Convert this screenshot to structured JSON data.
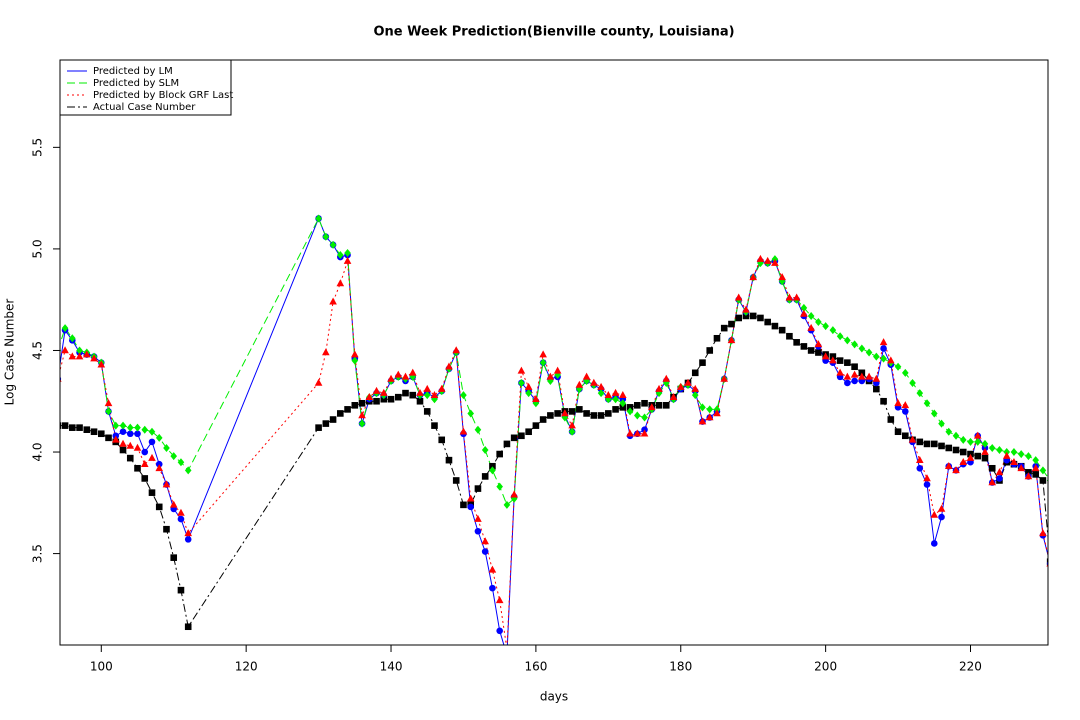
{
  "chart_data": {
    "type": "line",
    "title": "One Week Prediction(Bienville county, Louisiana)",
    "xlabel": "days",
    "ylabel": "Log Case Number",
    "x": [
      94,
      95,
      96,
      97,
      98,
      99,
      100,
      101,
      102,
      103,
      104,
      105,
      106,
      107,
      108,
      109,
      110,
      111,
      112,
      130,
      131,
      132,
      133,
      134,
      135,
      136,
      137,
      138,
      139,
      140,
      141,
      142,
      143,
      144,
      145,
      146,
      147,
      148,
      149,
      150,
      151,
      152,
      153,
      154,
      155,
      156,
      157,
      158,
      159,
      160,
      161,
      162,
      163,
      164,
      165,
      166,
      167,
      168,
      169,
      170,
      171,
      172,
      173,
      174,
      175,
      176,
      177,
      178,
      179,
      180,
      181,
      182,
      183,
      184,
      185,
      186,
      187,
      188,
      189,
      190,
      191,
      192,
      193,
      194,
      195,
      196,
      197,
      198,
      199,
      200,
      201,
      202,
      203,
      204,
      205,
      206,
      207,
      208,
      209,
      210,
      211,
      212,
      213,
      214,
      215,
      216,
      217,
      218,
      219,
      220,
      221,
      222,
      223,
      224,
      225,
      226,
      227,
      228,
      229,
      230,
      231
    ],
    "series": [
      {
        "name": "Predicted by LM",
        "color": "#0000ff",
        "linestyle": "solid",
        "marker": "circle",
        "values": [
          4.36,
          4.6,
          4.55,
          4.49,
          4.48,
          4.47,
          4.44,
          4.2,
          4.08,
          4.1,
          4.09,
          4.09,
          4.0,
          4.05,
          3.94,
          3.84,
          3.72,
          3.67,
          3.57,
          5.15,
          5.06,
          5.02,
          4.96,
          4.97,
          4.46,
          4.14,
          4.26,
          4.29,
          4.28,
          4.35,
          4.37,
          4.35,
          4.37,
          4.28,
          4.29,
          4.27,
          4.3,
          4.41,
          4.49,
          4.09,
          3.73,
          3.61,
          3.51,
          3.33,
          3.12,
          3.0,
          3.78,
          4.34,
          4.3,
          4.25,
          4.44,
          4.36,
          4.37,
          4.18,
          4.1,
          4.31,
          4.35,
          4.33,
          4.31,
          4.26,
          4.27,
          4.26,
          4.08,
          4.09,
          4.11,
          4.21,
          4.3,
          4.35,
          4.26,
          4.31,
          4.33,
          4.3,
          4.15,
          4.17,
          4.2,
          4.36,
          4.55,
          4.75,
          4.69,
          4.86,
          4.94,
          4.93,
          4.94,
          4.84,
          4.75,
          4.75,
          4.67,
          4.6,
          4.52,
          4.45,
          4.44,
          4.37,
          4.34,
          4.35,
          4.35,
          4.36,
          4.34,
          4.51,
          4.43,
          4.22,
          4.2,
          4.05,
          3.92,
          3.84,
          3.55,
          3.68,
          3.93,
          3.91,
          3.94,
          3.95,
          4.08,
          4.02,
          3.85,
          3.87,
          3.96,
          3.94,
          3.93,
          3.88,
          3.93,
          3.59,
          3.45
        ]
      },
      {
        "name": "Predicted by SLM",
        "color": "#00ee00",
        "linestyle": "dashed",
        "marker": "diamond",
        "values": [
          4.5,
          4.61,
          4.56,
          4.5,
          4.49,
          4.47,
          4.44,
          4.2,
          4.13,
          4.13,
          4.12,
          4.12,
          4.11,
          4.1,
          4.07,
          4.02,
          3.98,
          3.95,
          3.91,
          5.15,
          5.06,
          5.02,
          4.97,
          4.98,
          4.45,
          4.14,
          4.27,
          4.29,
          4.28,
          4.35,
          4.37,
          4.36,
          4.37,
          4.28,
          4.28,
          4.26,
          4.3,
          4.41,
          4.49,
          4.28,
          4.19,
          4.11,
          4.01,
          3.91,
          3.83,
          3.74,
          3.77,
          4.34,
          4.29,
          4.24,
          4.44,
          4.35,
          4.38,
          4.17,
          4.1,
          4.31,
          4.35,
          4.33,
          4.29,
          4.26,
          4.26,
          4.24,
          4.2,
          4.18,
          4.17,
          4.21,
          4.29,
          4.34,
          4.26,
          4.32,
          4.33,
          4.28,
          4.22,
          4.21,
          4.21,
          4.36,
          4.55,
          4.75,
          4.69,
          4.86,
          4.93,
          4.93,
          4.95,
          4.84,
          4.75,
          4.75,
          4.71,
          4.67,
          4.64,
          4.62,
          4.6,
          4.57,
          4.55,
          4.53,
          4.51,
          4.49,
          4.47,
          4.46,
          4.44,
          4.42,
          4.39,
          4.34,
          4.29,
          4.24,
          4.19,
          4.14,
          4.1,
          4.08,
          4.06,
          4.05,
          4.05,
          4.04,
          4.02,
          4.01,
          4.0,
          4.0,
          3.99,
          3.98,
          3.96,
          3.91,
          3.86
        ]
      },
      {
        "name": "Predicted by Block GRF Last",
        "color": "#ff0000",
        "linestyle": "dotted",
        "marker": "triangle",
        "values": [
          4.36,
          4.5,
          4.47,
          4.47,
          4.48,
          4.46,
          4.43,
          4.24,
          4.06,
          4.04,
          4.03,
          4.02,
          3.94,
          3.97,
          3.92,
          3.84,
          3.74,
          3.7,
          3.6,
          4.34,
          4.49,
          4.74,
          4.83,
          4.94,
          4.48,
          4.18,
          4.27,
          4.3,
          4.29,
          4.36,
          4.38,
          4.37,
          4.39,
          4.29,
          4.31,
          4.28,
          4.31,
          4.42,
          4.5,
          4.1,
          3.77,
          3.67,
          3.56,
          3.42,
          3.27,
          3.03,
          3.79,
          4.4,
          4.32,
          4.26,
          4.48,
          4.37,
          4.4,
          4.19,
          4.13,
          4.33,
          4.37,
          4.34,
          4.32,
          4.28,
          4.29,
          4.28,
          4.09,
          4.09,
          4.09,
          4.22,
          4.31,
          4.36,
          4.27,
          4.32,
          4.34,
          4.31,
          4.15,
          4.17,
          4.19,
          4.36,
          4.55,
          4.76,
          4.7,
          4.86,
          4.95,
          4.94,
          4.93,
          4.86,
          4.76,
          4.76,
          4.68,
          4.61,
          4.53,
          4.47,
          4.45,
          4.39,
          4.37,
          4.38,
          4.37,
          4.37,
          4.36,
          4.54,
          4.45,
          4.24,
          4.23,
          4.06,
          3.96,
          3.87,
          3.69,
          3.72,
          3.93,
          3.91,
          3.95,
          3.97,
          4.08,
          4.0,
          3.85,
          3.9,
          3.98,
          3.95,
          3.92,
          3.88,
          3.92,
          3.6,
          3.45
        ]
      },
      {
        "name": "Actual Case Number",
        "color": "#000000",
        "linestyle": "dashdot",
        "marker": "square",
        "values": [
          4.13,
          4.13,
          4.12,
          4.12,
          4.11,
          4.1,
          4.09,
          4.07,
          4.05,
          4.01,
          3.97,
          3.92,
          3.87,
          3.8,
          3.73,
          3.62,
          3.48,
          3.32,
          3.14,
          4.12,
          4.14,
          4.16,
          4.19,
          4.21,
          4.23,
          4.24,
          4.25,
          4.25,
          4.26,
          4.26,
          4.27,
          4.29,
          4.28,
          4.25,
          4.2,
          4.13,
          4.06,
          3.96,
          3.86,
          3.74,
          3.74,
          3.82,
          3.88,
          3.93,
          3.99,
          4.04,
          4.07,
          4.08,
          4.1,
          4.13,
          4.16,
          4.18,
          4.19,
          4.2,
          4.2,
          4.21,
          4.19,
          4.18,
          4.18,
          4.19,
          4.21,
          4.22,
          4.22,
          4.23,
          4.24,
          4.23,
          4.23,
          4.23,
          4.27,
          4.31,
          4.34,
          4.39,
          4.44,
          4.5,
          4.56,
          4.61,
          4.63,
          4.66,
          4.67,
          4.67,
          4.66,
          4.64,
          4.62,
          4.6,
          4.57,
          4.54,
          4.52,
          4.5,
          4.49,
          4.48,
          4.47,
          4.45,
          4.44,
          4.42,
          4.39,
          4.35,
          4.31,
          4.25,
          4.16,
          4.1,
          4.08,
          4.06,
          4.05,
          4.04,
          4.04,
          4.03,
          4.02,
          4.01,
          4.0,
          3.99,
          3.98,
          3.97,
          3.92,
          3.86,
          3.95,
          3.94,
          3.93,
          3.9,
          3.89,
          3.86,
          3.46
        ]
      }
    ],
    "xlim": [
      94.3,
      230.7
    ],
    "ylim": [
      3.05,
      5.93
    ],
    "xticks": [
      100,
      120,
      140,
      160,
      180,
      200,
      220
    ],
    "yticks": [
      3.5,
      {
        "value": 4,
        "label": "4.0"
      },
      4.5,
      {
        "value": 5,
        "label": "5.0"
      },
      5.5
    ],
    "legend": "topleft",
    "grid": false
  }
}
